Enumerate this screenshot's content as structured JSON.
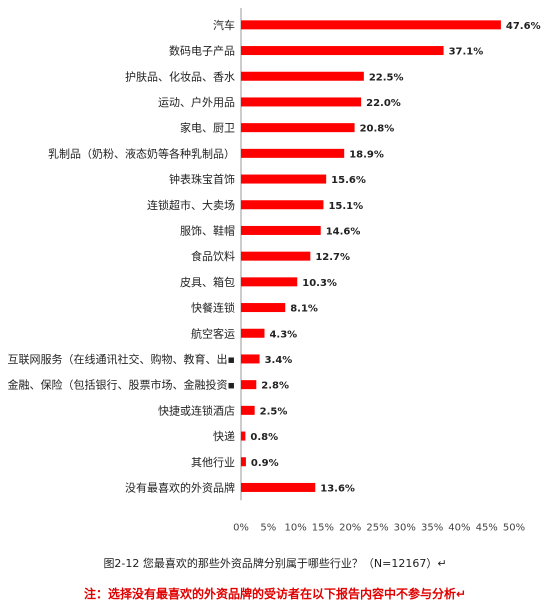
{
  "chart_data": {
    "type": "bar",
    "orientation": "horizontal",
    "categories": [
      "汽车",
      "数码电子产品",
      "护肤品、化妆品、香水",
      "运动、户外用品",
      "家电、厨卫",
      "乳制品（奶粉、液态奶等各种乳制品）",
      "钟表珠宝首饰",
      "连锁超市、大卖场",
      "服饰、鞋帽",
      "食品饮料",
      "皮具、箱包",
      "快餐连锁",
      "航空客运",
      "互联网服务（在线通讯社交、购物、教育、出▪",
      "金融、保险（包括银行、股票市场、金融投资▪",
      "快捷或连锁酒店",
      "快递",
      "其他行业",
      "没有最喜欢的外资品牌"
    ],
    "values": [
      47.6,
      37.1,
      22.5,
      22.0,
      20.8,
      18.9,
      15.6,
      15.1,
      14.6,
      12.7,
      10.3,
      8.1,
      4.3,
      3.4,
      2.8,
      2.5,
      0.8,
      0.9,
      13.6
    ],
    "value_labels": [
      "47.6%",
      "37.1%",
      "22.5%",
      "22.0%",
      "20.8%",
      "18.9%",
      "15.6%",
      "15.1%",
      "14.6%",
      "12.7%",
      "10.3%",
      "8.1%",
      "4.3%",
      "3.4%",
      "2.8%",
      "2.5%",
      "0.8%",
      "0.9%",
      "13.6%"
    ],
    "xlim": [
      0,
      50
    ],
    "x_ticks": [
      "0%",
      "5%",
      "10%",
      "15%",
      "20%",
      "25%",
      "30%",
      "35%",
      "40%",
      "45%",
      "50%"
    ],
    "bar_color": "#ff0000",
    "grid": false,
    "legend": "none",
    "title": "",
    "xlabel": "",
    "ylabel": ""
  },
  "caption": {
    "figure": "图2-12 您最喜欢的那些外资品牌分别属于哪些行业？（N=12167）↵",
    "note": "注：选择没有最喜欢的外资品牌的受访者在以下报告内容中不参与分析↵"
  }
}
